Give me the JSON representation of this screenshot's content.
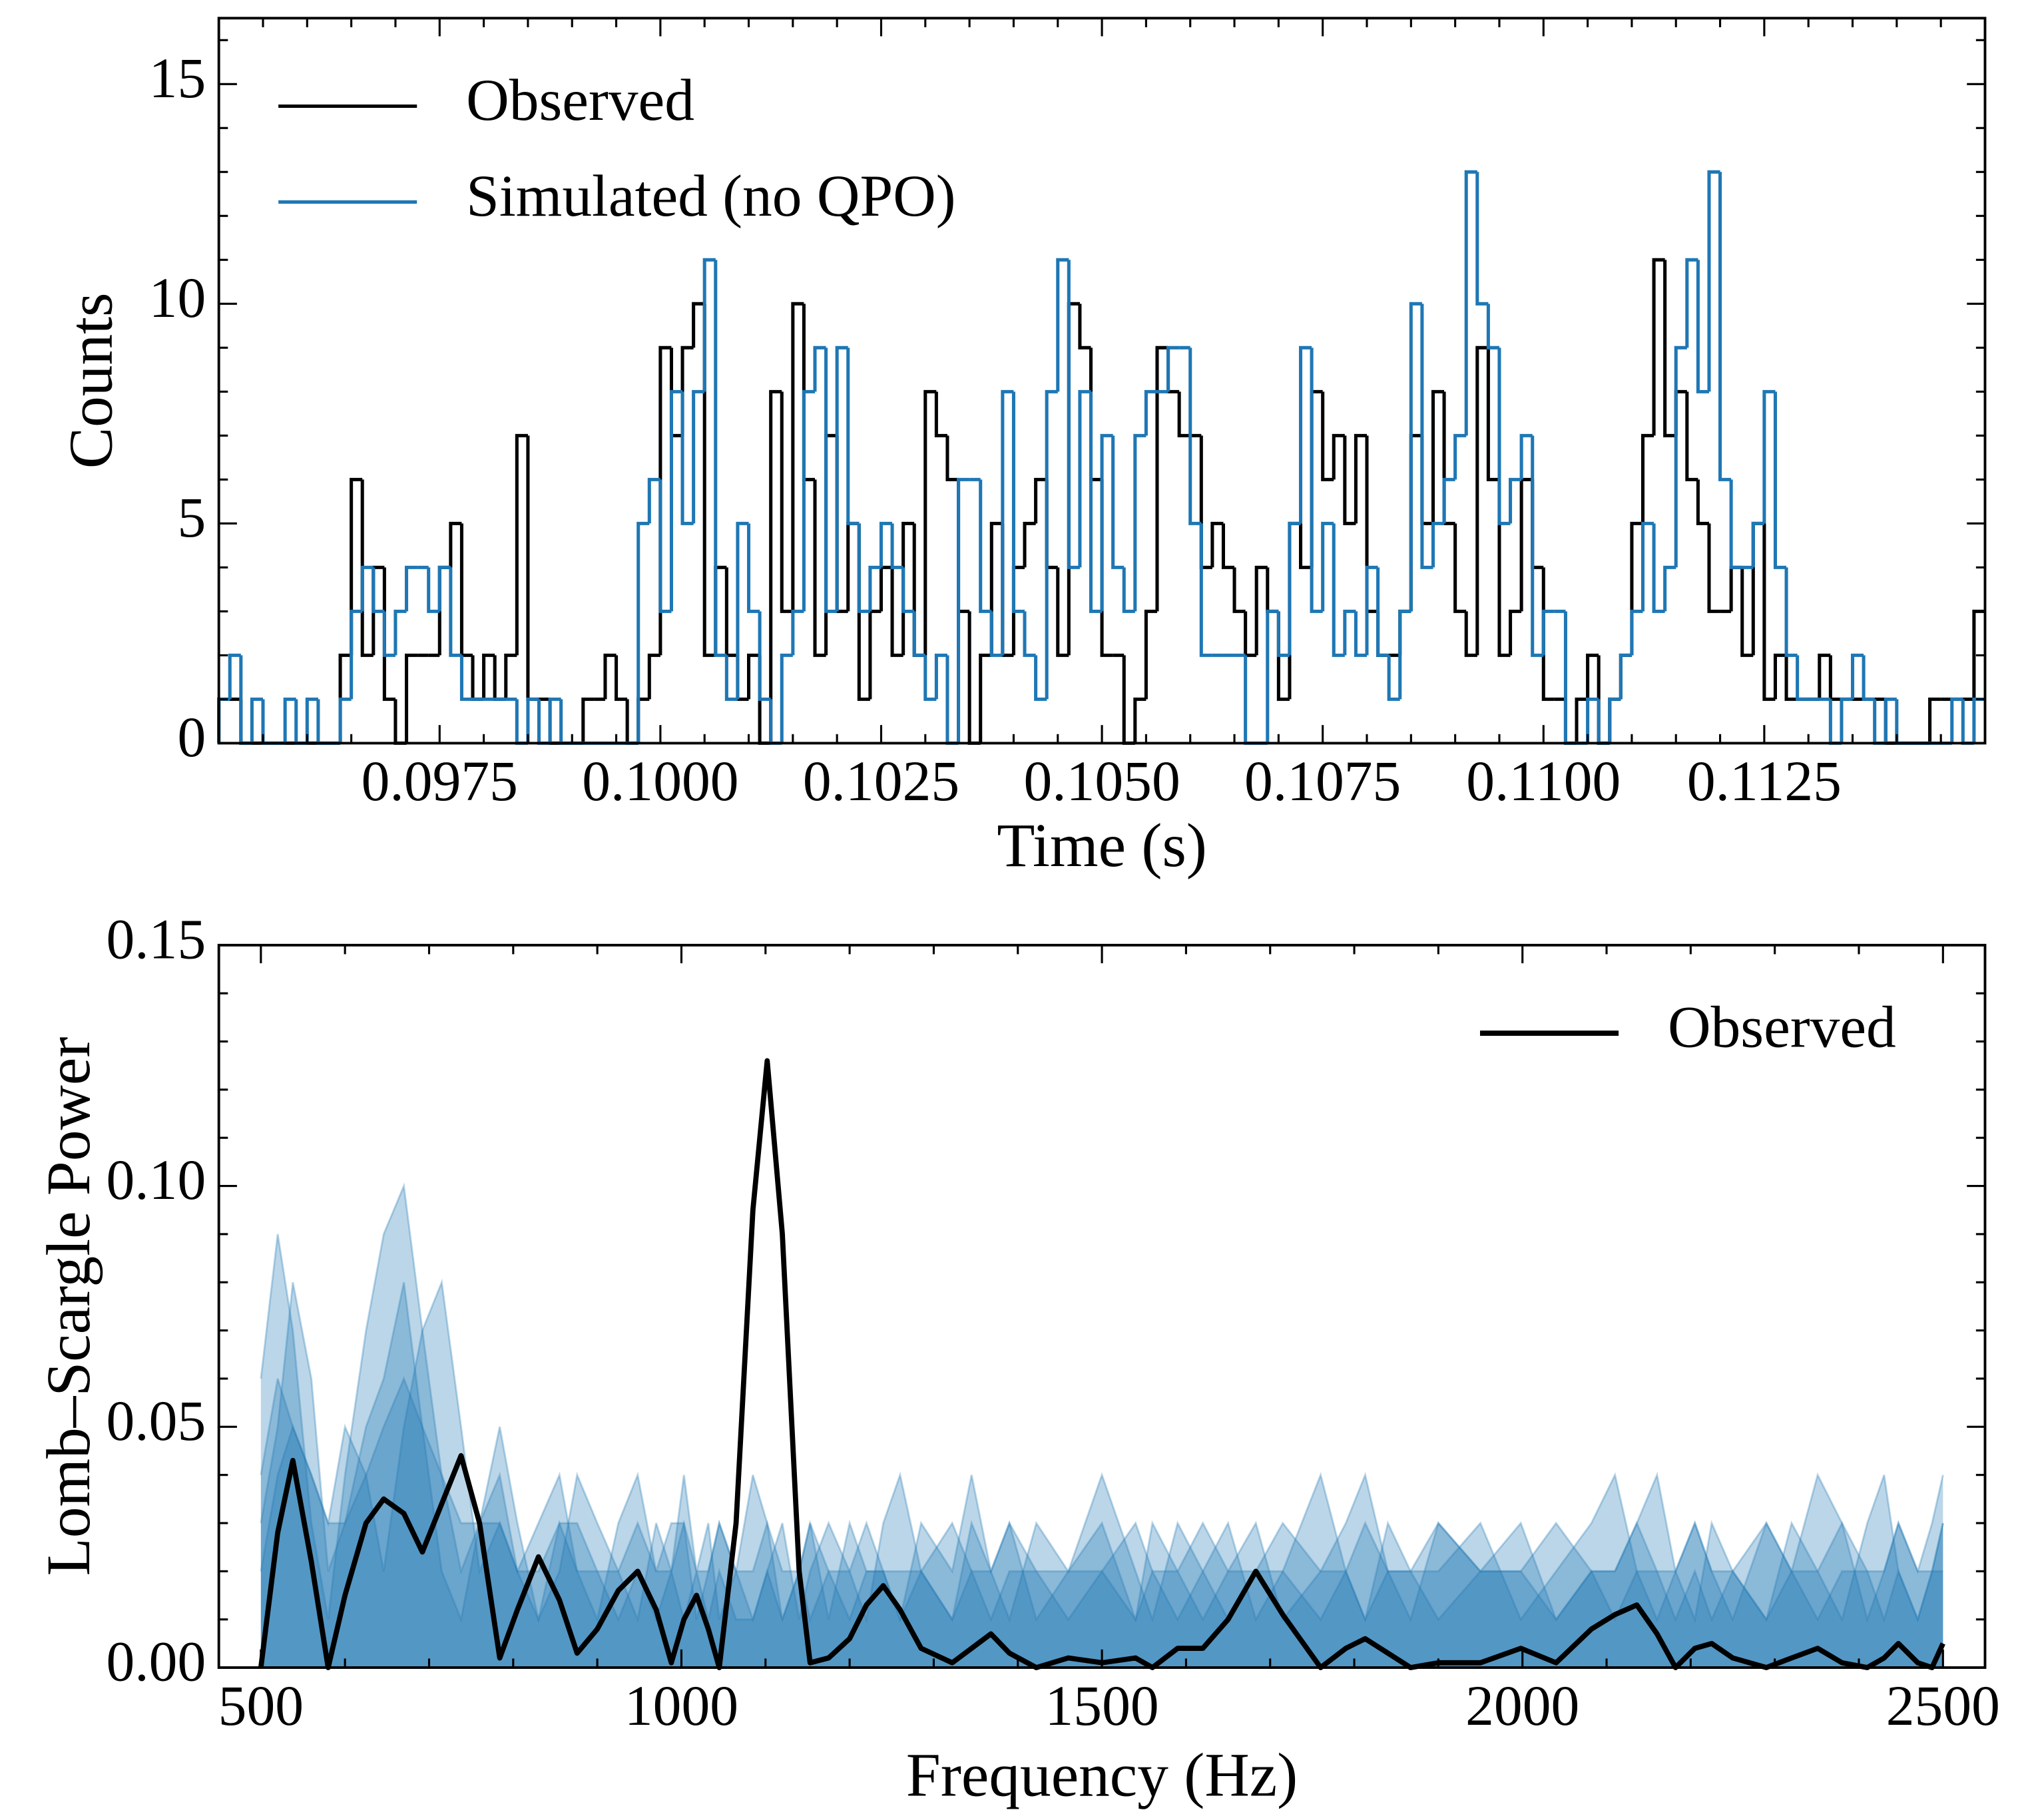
{
  "chart_data": [
    {
      "type": "histogram",
      "xlabel": "Time (s)",
      "ylabel": "Counts",
      "xlim": [
        0.095,
        0.115
      ],
      "ylim": [
        0,
        16.5
      ],
      "xticks": [
        0.0975,
        {
          "value": 0.1,
          "label": "0.1000"
        },
        0.1025,
        {
          "value": 0.105,
          "label": "0.1050"
        },
        0.1075,
        {
          "value": 0.11,
          "label": "0.1100"
        },
        0.1125
      ],
      "yticks": [
        0,
        5,
        10,
        15
      ],
      "legend": "upper left",
      "bins": [
        0.095,
        0.095125,
        0.09525,
        0.095375,
        0.0955,
        0.095625,
        0.09575,
        0.095875,
        0.096,
        0.096125,
        0.09625,
        0.096375,
        0.0965,
        0.096625,
        0.09675,
        0.096875,
        0.097,
        0.097125,
        0.09725,
        0.097375,
        0.0975,
        0.097625,
        0.09775,
        0.097875,
        0.098,
        0.098125,
        0.09825,
        0.098375,
        0.0985,
        0.098625,
        0.09875,
        0.098875,
        0.099,
        0.099125,
        0.09925,
        0.099375,
        0.0995,
        0.099625,
        0.09975,
        0.099875,
        0.1,
        0.100125,
        0.10025,
        0.100375,
        0.1005,
        0.100625,
        0.10075,
        0.100875,
        0.101,
        0.101125,
        0.10125,
        0.101375,
        0.1015,
        0.101625,
        0.10175,
        0.101875,
        0.102,
        0.102125,
        0.10225,
        0.102375,
        0.1025,
        0.102625,
        0.10275,
        0.102875,
        0.103,
        0.103125,
        0.10325,
        0.103375,
        0.1035,
        0.103625,
        0.10375,
        0.103875,
        0.104,
        0.104125,
        0.10425,
        0.104375,
        0.1045,
        0.104625,
        0.10475,
        0.104875,
        0.105,
        0.105125,
        0.10525,
        0.105375,
        0.1055,
        0.105625,
        0.10575,
        0.105875,
        0.106,
        0.106125,
        0.10625,
        0.106375,
        0.1065,
        0.106625,
        0.10675,
        0.106875,
        0.107,
        0.107125,
        0.10725,
        0.107375,
        0.1075,
        0.107625,
        0.10775,
        0.107875,
        0.108,
        0.108125,
        0.10825,
        0.108375,
        0.1085,
        0.108625,
        0.10875,
        0.108875,
        0.109,
        0.109125,
        0.10925,
        0.109375,
        0.1095,
        0.109625,
        0.10975,
        0.109875,
        0.11,
        0.110125,
        0.11025,
        0.110375,
        0.1105,
        0.110625,
        0.11075,
        0.110875,
        0.111,
        0.111125,
        0.11125,
        0.111375,
        0.1115,
        0.111625,
        0.11175,
        0.111875,
        0.112,
        0.112125,
        0.11225,
        0.112375,
        0.1125,
        0.112625,
        0.11275,
        0.112875,
        0.113,
        0.113125,
        0.11325,
        0.113375,
        0.1135,
        0.113625,
        0.11375,
        0.113875,
        0.114,
        0.114125,
        0.11425,
        0.114375,
        0.1145,
        0.114625,
        0.11475,
        0.114875,
        0.115
      ],
      "series": [
        {
          "name": "Observed",
          "color": "#000000",
          "values": [
            1,
            1,
            0,
            0,
            0,
            0,
            0,
            0,
            0,
            0,
            0,
            2,
            6,
            2,
            4,
            1,
            0,
            2,
            2,
            2,
            4,
            5,
            2,
            1,
            2,
            1,
            2,
            7,
            1,
            1,
            0,
            0,
            0,
            1,
            1,
            2,
            1,
            0,
            1,
            2,
            9,
            7,
            9,
            10,
            2,
            4,
            2,
            1,
            2,
            0,
            8,
            3,
            10,
            6,
            2,
            7,
            3,
            5,
            1,
            3,
            4,
            2,
            5,
            2,
            8,
            7,
            6,
            3,
            0,
            2,
            5,
            2,
            4,
            5,
            6,
            4,
            2,
            10,
            9,
            6,
            2,
            2,
            0,
            1,
            3,
            9,
            8,
            7,
            7,
            4,
            5,
            4,
            3,
            2,
            4,
            3,
            1,
            5,
            4,
            8,
            6,
            7,
            5,
            7,
            3,
            2,
            2,
            3,
            7,
            5,
            8,
            5,
            3,
            2,
            9,
            6,
            2,
            3,
            6,
            4,
            1,
            1,
            0,
            1,
            2,
            0,
            1,
            2,
            5,
            7,
            11,
            7,
            8,
            6,
            5,
            3,
            3,
            4,
            2,
            5,
            1,
            2,
            1,
            1,
            1,
            2,
            1,
            1,
            1,
            1,
            1,
            0,
            0,
            0,
            0,
            1,
            1,
            1,
            1,
            3
          ]
        },
        {
          "name": "Simulated (no QPO)",
          "color": "#1f77b4",
          "values": [
            1,
            2,
            0,
            1,
            0,
            0,
            1,
            0,
            1,
            0,
            0,
            1,
            3,
            4,
            3,
            2,
            3,
            4,
            4,
            3,
            4,
            2,
            1,
            1,
            1,
            1,
            1,
            0,
            1,
            0,
            1,
            0,
            0,
            0,
            0,
            0,
            0,
            0,
            5,
            6,
            3,
            8,
            5,
            8,
            11,
            2,
            1,
            5,
            3,
            1,
            0,
            2,
            3,
            8,
            9,
            3,
            9,
            5,
            3,
            4,
            5,
            4,
            3,
            2,
            1,
            2,
            0,
            6,
            6,
            3,
            2,
            8,
            3,
            2,
            1,
            8,
            11,
            4,
            8,
            3,
            7,
            4,
            3,
            7,
            8,
            8,
            9,
            9,
            5,
            2,
            2,
            2,
            2,
            0,
            0,
            3,
            2,
            5,
            9,
            3,
            5,
            2,
            3,
            2,
            4,
            2,
            1,
            3,
            10,
            4,
            5,
            6,
            7,
            13,
            10,
            9,
            5,
            6,
            7,
            2,
            3,
            3,
            0,
            0,
            1,
            0,
            1,
            2,
            3,
            5,
            3,
            4,
            9,
            11,
            8,
            13,
            6,
            4,
            4,
            5,
            8,
            4,
            2,
            1,
            1,
            1,
            0,
            1,
            2,
            1,
            0,
            1,
            0,
            0,
            0,
            0,
            0,
            1,
            0,
            1
          ]
        }
      ]
    },
    {
      "type": "line",
      "xlabel": "Frequency (Hz)",
      "ylabel": "Lomb–Scargle Power",
      "xlim": [
        450,
        2550
      ],
      "ylim": [
        0,
        0.15
      ],
      "xticks": [
        500,
        1000,
        1500,
        2000,
        2500
      ],
      "yticks": [
        {
          "value": 0,
          "label": "0.00"
        },
        0.05,
        {
          "value": 0.1,
          "label": "0.10"
        },
        0.15
      ],
      "legend": "upper right",
      "x": [
        500,
        520,
        538,
        560,
        580,
        600,
        625,
        646,
        670,
        692,
        715,
        738,
        760,
        784,
        805,
        830,
        855,
        876,
        900,
        925,
        948,
        970,
        988,
        1003,
        1018,
        1032,
        1045,
        1065,
        1085,
        1102,
        1120,
        1140,
        1153,
        1175,
        1200,
        1220,
        1240,
        1260,
        1285,
        1322,
        1345,
        1368,
        1390,
        1422,
        1460,
        1500,
        1540,
        1560,
        1590,
        1620,
        1650,
        1683,
        1715,
        1760,
        1790,
        1813,
        1840,
        1867,
        1900,
        1950,
        1998,
        2040,
        2082,
        2110,
        2136,
        2160,
        2182,
        2205,
        2225,
        2250,
        2290,
        2320,
        2351,
        2380,
        2410,
        2430,
        2447,
        2470,
        2487,
        2500
      ],
      "series": [
        {
          "color": "#1f77b4",
          "alpha": 0.3,
          "values": [
            0.06,
            0.09,
            0.07,
            0.03,
            0.01,
            0.04,
            0.07,
            0.09,
            0.1,
            0.07,
            0.04,
            0.02,
            0.03,
            0.04,
            0.02,
            0.03,
            0.04,
            0.02,
            0.01,
            0.03,
            0.04,
            0.02,
            0.03,
            0.03,
            0.01,
            0.02,
            0.03,
            0.02,
            0.01,
            0.02,
            0.03,
            0.01,
            0.02,
            0.03,
            0.02,
            0.01,
            0.03,
            0.04,
            0.02,
            0.01,
            0.03,
            0.02,
            0.01,
            0.03,
            0.02,
            0.04,
            0.02,
            0.01,
            0.03,
            0.02,
            0.03,
            0.01,
            0.02,
            0.04,
            0.02,
            0.01,
            0.03,
            0.02,
            0.02,
            0.03,
            0.01,
            0.02,
            0.03,
            0.04,
            0.02,
            0.01,
            0.02,
            0.03,
            0.02,
            0.01,
            0.03,
            0.02,
            0.04,
            0.03,
            0.01,
            0.02,
            0.03,
            0.02,
            0.03,
            0.04
          ]
        },
        {
          "color": "#1f77b4",
          "alpha": 0.3,
          "values": [
            0.03,
            0.05,
            0.08,
            0.06,
            0.02,
            0.03,
            0.05,
            0.06,
            0.08,
            0.05,
            0.02,
            0.01,
            0.03,
            0.05,
            0.03,
            0.01,
            0.02,
            0.04,
            0.03,
            0.02,
            0.01,
            0.03,
            0.02,
            0.04,
            0.02,
            0.03,
            0.01,
            0.02,
            0.04,
            0.03,
            0.01,
            0.02,
            0.03,
            0.01,
            0.03,
            0.02,
            0.02,
            0.01,
            0.03,
            0.02,
            0.04,
            0.02,
            0.03,
            0.01,
            0.02,
            0.03,
            0.01,
            0.03,
            0.02,
            0.01,
            0.02,
            0.03,
            0.01,
            0.02,
            0.03,
            0.04,
            0.02,
            0.01,
            0.03,
            0.02,
            0.03,
            0.01,
            0.02,
            0.02,
            0.03,
            0.04,
            0.02,
            0.01,
            0.03,
            0.02,
            0.01,
            0.03,
            0.02,
            0.01,
            0.03,
            0.04,
            0.02,
            0.01,
            0.02,
            0.03
          ]
        },
        {
          "color": "#1f77b4",
          "alpha": 0.3,
          "values": [
            0.02,
            0.04,
            0.05,
            0.04,
            0.03,
            0.05,
            0.04,
            0.02,
            0.05,
            0.07,
            0.08,
            0.05,
            0.02,
            0.03,
            0.02,
            0.01,
            0.03,
            0.02,
            0.02,
            0.01,
            0.02,
            0.01,
            0.02,
            0.01,
            0.02,
            0.01,
            0.02,
            0.01,
            0.01,
            0.02,
            0.01,
            0.02,
            0.01,
            0.02,
            0.01,
            0.02,
            0.02,
            0.01,
            0.02,
            0.01,
            0.02,
            0.01,
            0.02,
            0.02,
            0.01,
            0.02,
            0.01,
            0.02,
            0.01,
            0.02,
            0.01,
            0.02,
            0.02,
            0.01,
            0.02,
            0.01,
            0.02,
            0.02,
            0.01,
            0.02,
            0.02,
            0.01,
            0.02,
            0.01,
            0.02,
            0.02,
            0.01,
            0.02,
            0.01,
            0.02,
            0.01,
            0.02,
            0.01,
            0.02,
            0.02,
            0.01,
            0.02,
            0.01,
            0.02,
            0.02
          ]
        },
        {
          "color": "#1f77b4",
          "alpha": 0.3,
          "values": [
            0.04,
            0.06,
            0.05,
            0.04,
            0.03,
            0.03,
            0.04,
            0.05,
            0.06,
            0.05,
            0.04,
            0.03,
            0.03,
            0.03,
            0.02,
            0.02,
            0.03,
            0.03,
            0.02,
            0.02,
            0.03,
            0.02,
            0.02,
            0.03,
            0.02,
            0.02,
            0.03,
            0.02,
            0.02,
            0.03,
            0.02,
            0.02,
            0.03,
            0.02,
            0.02,
            0.03,
            0.02,
            0.02,
            0.02,
            0.03,
            0.02,
            0.02,
            0.03,
            0.02,
            0.02,
            0.02,
            0.03,
            0.02,
            0.02,
            0.03,
            0.02,
            0.02,
            0.03,
            0.02,
            0.02,
            0.03,
            0.02,
            0.02,
            0.03,
            0.02,
            0.02,
            0.03,
            0.02,
            0.02,
            0.03,
            0.02,
            0.02,
            0.03,
            0.02,
            0.02,
            0.03,
            0.02,
            0.02,
            0.03,
            0.02,
            0.02,
            0.03,
            0.02,
            0.02,
            0.03
          ]
        },
        {
          "name": "Observed",
          "color": "#000000",
          "values": [
            0,
            0.028,
            0.043,
            0.022,
            0,
            0.015,
            0.03,
            0.035,
            0.032,
            0.024,
            0.034,
            0.044,
            0.03,
            0.002,
            0.012,
            0.023,
            0.014,
            0.003,
            0.008,
            0.016,
            0.02,
            0.012,
            0.001,
            0.01,
            0.015,
            0.008,
            0,
            0.03,
            0.095,
            0.126,
            0.09,
            0.02,
            0.001,
            0.002,
            0.006,
            0.013,
            0.017,
            0.012,
            0.004,
            0.001,
            0.004,
            0.007,
            0.003,
            0,
            0.002,
            0.001,
            0.002,
            0,
            0.004,
            0.004,
            0.01,
            0.02,
            0.011,
            0,
            0.004,
            0.006,
            0.003,
            0,
            0.001,
            0.001,
            0.004,
            0.001,
            0.008,
            0.011,
            0.013,
            0.007,
            0,
            0.004,
            0.005,
            0.002,
            0,
            0.002,
            0.004,
            0.001,
            0,
            0.002,
            0.005,
            0.001,
            0,
            0.005
          ]
        }
      ]
    }
  ]
}
